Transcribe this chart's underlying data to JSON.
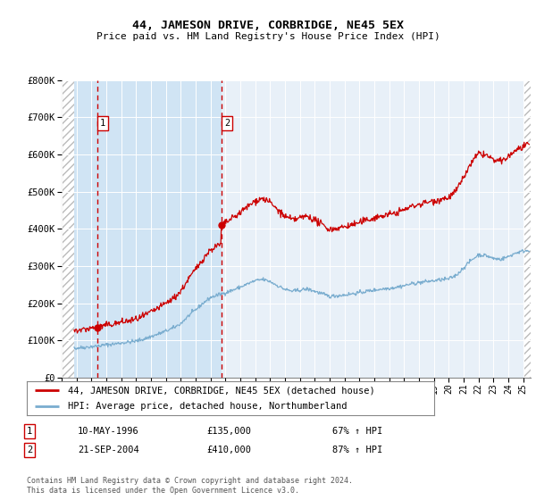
{
  "title": "44, JAMESON DRIVE, CORBRIDGE, NE45 5EX",
  "subtitle": "Price paid vs. HM Land Registry's House Price Index (HPI)",
  "legend_line1": "44, JAMESON DRIVE, CORBRIDGE, NE45 5EX (detached house)",
  "legend_line2": "HPI: Average price, detached house, Northumberland",
  "transaction1_date": "10-MAY-1996",
  "transaction1_price": 135000,
  "transaction1_hpi": "67% ↑ HPI",
  "transaction2_date": "21-SEP-2004",
  "transaction2_price": 410000,
  "transaction2_hpi": "87% ↑ HPI",
  "footer": "Contains HM Land Registry data © Crown copyright and database right 2024.\nThis data is licensed under the Open Government Licence v3.0.",
  "property_color": "#cc0000",
  "hpi_color": "#7aadcf",
  "vline_color": "#cc0000",
  "ylim_max": 800000,
  "xmin": 1994.0,
  "xmax": 2025.5,
  "t1": 1996.37,
  "t2": 2004.72,
  "background_color": "#ffffff",
  "plot_bg_color": "#e8f0f8",
  "highlight_bg_color": "#d0e4f4",
  "hatch_bg_color": "#e0e0e0"
}
